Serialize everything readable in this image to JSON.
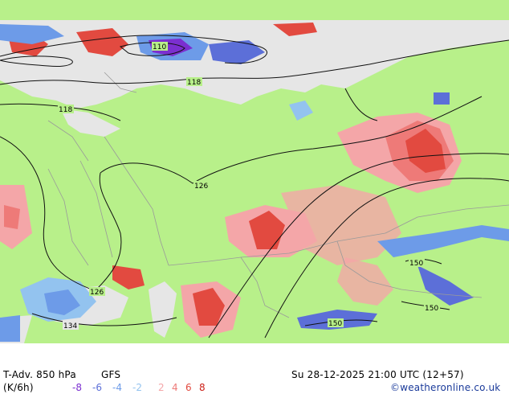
{
  "header": {
    "title_left": "T-Adv. 850 hPa",
    "model": "GFS",
    "datetime": "Su 28-12-2025 21:00 UTC (12+57)"
  },
  "legend": {
    "unit": "(K/6h)",
    "values": [
      {
        "label": "-8",
        "color": "#7b2fd0"
      },
      {
        "label": "-6",
        "color": "#5c6fd8"
      },
      {
        "label": "-4",
        "color": "#6d9be8"
      },
      {
        "label": "-2",
        "color": "#93c3ef"
      },
      {
        "label": "2",
        "color": "#f4a6a8"
      },
      {
        "label": "4",
        "color": "#ee7a78"
      },
      {
        "label": "6",
        "color": "#e24a40"
      },
      {
        "label": "8",
        "color": "#cc2018"
      }
    ]
  },
  "credit": "©weatheronline.co.uk",
  "contour_labels": [
    "110",
    "118",
    "118",
    "126",
    "126",
    "134",
    "150",
    "150",
    "150"
  ],
  "colors": {
    "land": "#b8f08a",
    "sea": "#e6e6e6",
    "border": "#a0a0a0"
  }
}
